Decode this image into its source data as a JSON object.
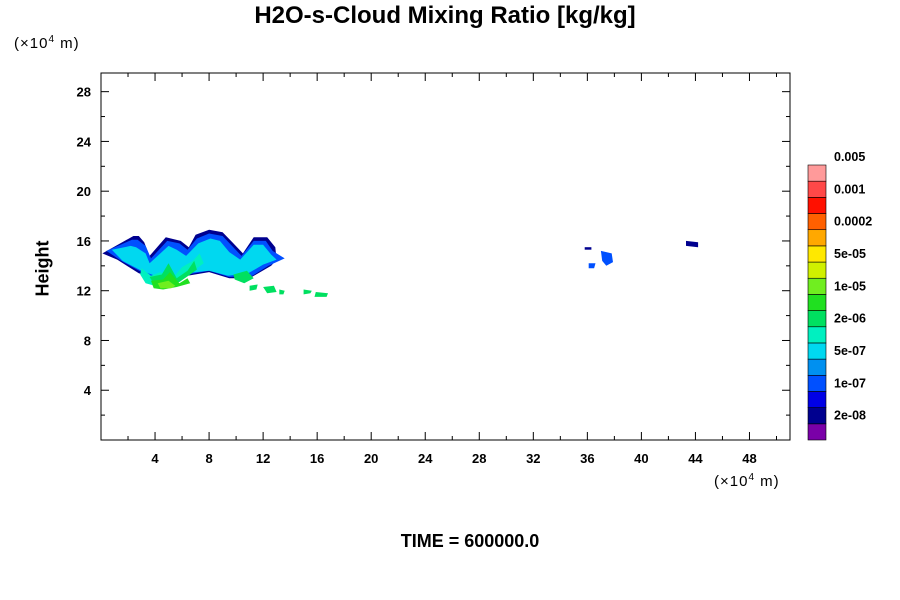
{
  "chart_data": {
    "type": "heatmap",
    "title": "H2O-s-Cloud Mixing Ratio [kg/kg]",
    "ylabel": "Height",
    "x_unit": {
      "prefix": "(×10",
      "exp": "4",
      "suffix": " m)"
    },
    "y_unit": {
      "prefix": "(×10",
      "exp": "4",
      "suffix": " m)"
    },
    "xlim": [
      0,
      51
    ],
    "ylim": [
      0,
      29.5
    ],
    "x_ticks": [
      4,
      8,
      12,
      16,
      20,
      24,
      28,
      32,
      36,
      40,
      44,
      48
    ],
    "x_tick_labels": [
      "4",
      "8",
      "12",
      "16",
      "20",
      "24",
      "28",
      "32",
      "36",
      "40",
      "44",
      "48"
    ],
    "y_ticks": [
      4,
      8,
      12,
      16,
      20,
      24,
      28
    ],
    "y_tick_labels": [
      "4",
      "8",
      "12",
      "16",
      "20",
      "24",
      "28"
    ],
    "colorbar": {
      "colors": [
        "#7a00a8",
        "#00008f",
        "#0000e6",
        "#0050ff",
        "#0090f0",
        "#00d8f0",
        "#00f0c0",
        "#00e060",
        "#20e020",
        "#70ee20",
        "#d0f000",
        "#ffe800",
        "#ffa800",
        "#ff6000",
        "#ff1000",
        "#ff4848",
        "#ff9a9a"
      ],
      "labels": [
        "2e-08",
        "1e-07",
        "5e-07",
        "2e-06",
        "1e-05",
        "5e-05",
        "0.0002",
        "0.001",
        "0.005"
      ]
    },
    "regions": [
      {
        "level": 1,
        "x": [
          0.1,
          2.4,
          2.8,
          3.2,
          3.6,
          4.8,
          5.9,
          6.5,
          7.0,
          8.0,
          9.0,
          9.8,
          10.5,
          11.3,
          12.3,
          12.9,
          13.0,
          12.6,
          11.0,
          9.5,
          8.0,
          6.4,
          4.5,
          2.8,
          1.2,
          0.1
        ],
        "y": [
          15.0,
          16.4,
          16.4,
          15.9,
          14.8,
          16.3,
          16.0,
          15.5,
          16.5,
          16.9,
          16.7,
          15.8,
          15.0,
          16.3,
          16.3,
          15.5,
          14.5,
          14.0,
          13.0,
          13.0,
          13.5,
          13.2,
          12.8,
          13.4,
          14.5,
          15.0
        ]
      },
      {
        "level": 3,
        "x": [
          0.4,
          2.3,
          2.7,
          3.3,
          3.7,
          4.9,
          5.8,
          6.4,
          7.1,
          8.0,
          9.0,
          9.7,
          10.4,
          11.3,
          12.2,
          12.7,
          13.6,
          12.4,
          11.2,
          9.5,
          8.0,
          6.4,
          4.5,
          3.0,
          1.5,
          0.4
        ],
        "y": [
          15.2,
          16.1,
          16.1,
          15.6,
          14.6,
          16.0,
          15.8,
          15.3,
          16.2,
          16.6,
          16.4,
          15.6,
          14.8,
          16.0,
          16.0,
          15.2,
          14.6,
          14.0,
          13.2,
          13.1,
          13.6,
          13.3,
          12.9,
          13.5,
          14.4,
          15.2
        ]
      },
      {
        "level": 5,
        "x": [
          0.8,
          2.2,
          2.6,
          3.3,
          3.6,
          5.0,
          5.6,
          6.3,
          7.2,
          8.1,
          8.8,
          9.5,
          10.3,
          11.3,
          12.0,
          12.6,
          13.0,
          12.0,
          10.9,
          9.4,
          8.0,
          6.3,
          4.5,
          3.0,
          1.6,
          0.8
        ],
        "y": [
          15.3,
          15.6,
          15.5,
          15.0,
          14.2,
          15.6,
          15.3,
          14.8,
          15.8,
          16.2,
          16.0,
          15.1,
          14.5,
          15.7,
          15.7,
          14.9,
          14.5,
          14.1,
          13.4,
          13.2,
          13.6,
          13.4,
          13.0,
          13.6,
          14.4,
          15.3
        ]
      },
      {
        "level": 6,
        "x": [
          3.0,
          3.7,
          4.4,
          5.3,
          6.0,
          6.8,
          7.3,
          7.6,
          6.6,
          5.6,
          4.3,
          3.3,
          2.9,
          3.0
        ],
        "y": [
          13.8,
          13.2,
          13.5,
          13.0,
          13.9,
          14.4,
          15.0,
          14.2,
          13.4,
          12.6,
          12.3,
          12.6,
          13.3,
          13.8
        ]
      },
      {
        "level": 7,
        "x": [
          3.6,
          4.5,
          5.0,
          5.6,
          6.4,
          6.9,
          7.1,
          6.6,
          5.8,
          4.8,
          3.9,
          3.6
        ],
        "y": [
          13.1,
          13.3,
          14.2,
          13.0,
          13.6,
          14.4,
          13.7,
          13.3,
          12.7,
          12.4,
          12.6,
          13.1
        ]
      },
      {
        "level": 8,
        "x": [
          3.7,
          4.6,
          5.1,
          5.8,
          6.4,
          6.6,
          5.6,
          4.6,
          3.9,
          3.7
        ],
        "y": [
          12.8,
          12.9,
          13.5,
          12.6,
          13.0,
          12.6,
          12.3,
          12.1,
          12.2,
          12.8
        ]
      },
      {
        "level": 9,
        "x": [
          4.2,
          5.0,
          5.5,
          5.2,
          4.4,
          4.2
        ],
        "y": [
          12.6,
          12.8,
          12.4,
          12.2,
          12.2,
          12.6
        ]
      },
      {
        "level": 7,
        "x": [
          9.8,
          10.8,
          11.3,
          10.6,
          9.9,
          9.8
        ],
        "y": [
          13.3,
          13.6,
          13.0,
          12.6,
          12.9,
          13.3
        ]
      },
      {
        "level": 7,
        "x": [
          11.0,
          11.6,
          11.5,
          11.0,
          11.0
        ],
        "y": [
          12.4,
          12.5,
          12.1,
          12.0,
          12.4
        ]
      },
      {
        "level": 7,
        "x": [
          12.0,
          12.8,
          13.0,
          12.3,
          12.0
        ],
        "y": [
          12.3,
          12.4,
          11.9,
          11.8,
          12.3
        ]
      },
      {
        "level": 7,
        "x": [
          13.2,
          13.6,
          13.5,
          13.2,
          13.2
        ],
        "y": [
          12.1,
          12.0,
          11.7,
          11.7,
          12.1
        ]
      },
      {
        "level": 7,
        "x": [
          15.0,
          15.6,
          15.5,
          15.0,
          15.0
        ],
        "y": [
          12.1,
          12.0,
          11.8,
          11.7,
          12.1
        ]
      },
      {
        "level": 7,
        "x": [
          15.9,
          16.8,
          16.7,
          15.8,
          15.9
        ],
        "y": [
          11.9,
          11.8,
          11.5,
          11.5,
          11.9
        ]
      },
      {
        "level": 1,
        "x": [
          35.8,
          36.3,
          36.3,
          35.8,
          35.8
        ],
        "y": [
          15.5,
          15.5,
          15.3,
          15.3,
          15.5
        ]
      },
      {
        "level": 3,
        "x": [
          36.1,
          36.6,
          36.5,
          36.1,
          36.1
        ],
        "y": [
          14.2,
          14.2,
          13.8,
          13.8,
          14.2
        ]
      },
      {
        "level": 3,
        "x": [
          37.0,
          37.8,
          37.9,
          37.4,
          37.1,
          37.0
        ],
        "y": [
          15.2,
          15.0,
          14.3,
          14.0,
          14.4,
          15.2
        ]
      },
      {
        "level": 1,
        "x": [
          43.3,
          44.2,
          44.2,
          43.3,
          43.3
        ],
        "y": [
          16.0,
          15.9,
          15.5,
          15.6,
          16.0
        ]
      }
    ]
  },
  "footer": {
    "prefix": "TIME = ",
    "value": "600000.0"
  }
}
